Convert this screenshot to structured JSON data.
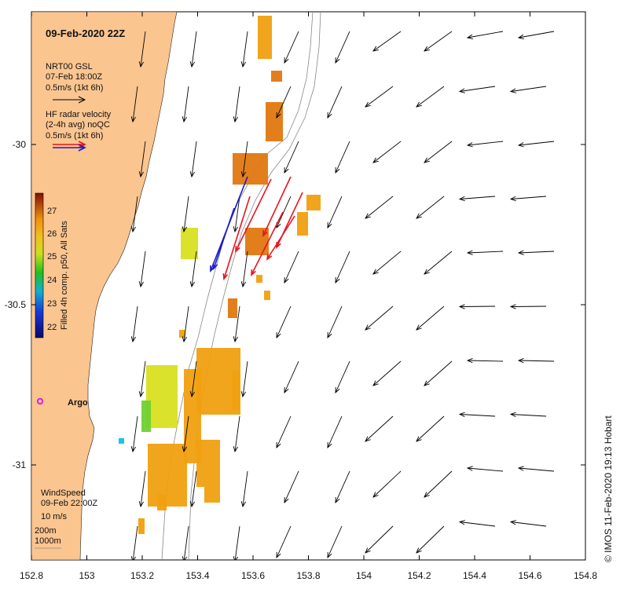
{
  "title": "09-Feb-2020 22Z",
  "legend_model": {
    "line1": "NRT00 GSL",
    "line2": "07-Feb 18:00Z",
    "line3": "0.5m/s (1kt 6h)"
  },
  "legend_radar": {
    "line1": "HF radar velocity",
    "line2": "(2-4h avg) noQC",
    "line3": "0.5m/s (1kt 6h)"
  },
  "colorbar": {
    "label": "Filled 4h comp. p50, All Sats",
    "ticks": [
      "27",
      "26",
      "25",
      "24",
      "23",
      "22"
    ]
  },
  "argo_label": "Argo",
  "wind": {
    "line1": "WindSpeed",
    "line2": "09-Feb 22:00Z",
    "line3": "10 m/s"
  },
  "depth": {
    "line1": "200m",
    "line2": "1000m"
  },
  "x_ticks": [
    "152.8",
    "153",
    "153.2",
    "153.4",
    "153.6",
    "153.8",
    "154",
    "154.2",
    "154.4",
    "154.6",
    "154.8"
  ],
  "y_ticks": [
    "-30",
    "-30.5",
    "-31"
  ],
  "credit": "©  IMOS 11-Feb-2020 19:13 Hobart",
  "colors": {
    "land": "#fbc590",
    "radar_red": "#e8141e",
    "radar_blue": "#1b1bc8",
    "argo": "#e020e0",
    "buoy": "#16c6e8",
    "sst_orange": "#f0a010"
  }
}
